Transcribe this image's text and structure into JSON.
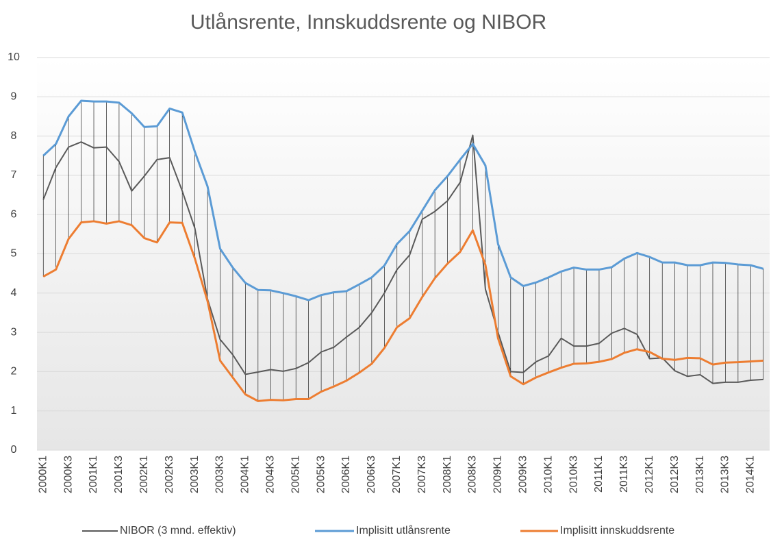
{
  "chart_data": {
    "type": "line",
    "title": "Utlånsrente, Innskuddsrente og NIBOR",
    "categories": [
      "2000K1",
      null,
      "2000K3",
      null,
      "2001K1",
      null,
      "2001K3",
      null,
      "2002K1",
      null,
      "2002K3",
      null,
      "2003K1",
      null,
      "2003K3",
      null,
      "2004K1",
      null,
      "2004K3",
      null,
      "2005K1",
      null,
      "2005K3",
      null,
      "2006K1",
      null,
      "2006K3",
      null,
      "2007K1",
      null,
      "2007K3",
      null,
      "2008K1",
      null,
      "2008K3",
      null,
      "2009K1",
      null,
      "2009K3",
      null,
      "2010K1",
      null,
      "2010K3",
      null,
      "2011K1",
      null,
      "2011K3",
      null,
      "2012K1",
      null,
      "2012K3",
      null,
      "2013K1",
      null,
      "2013K3",
      null,
      "2014K1",
      null
    ],
    "series": [
      {
        "name": "NIBOR (3 mnd. effektiv)",
        "color": "#595959",
        "values": [
          6.38,
          7.2,
          7.72,
          7.85,
          7.7,
          7.72,
          7.35,
          6.6,
          6.98,
          7.4,
          7.45,
          6.6,
          5.65,
          3.85,
          2.82,
          2.43,
          1.93,
          1.99,
          2.05,
          2.01,
          2.08,
          2.23,
          2.5,
          2.62,
          2.88,
          3.12,
          3.5,
          4.0,
          4.6,
          4.97,
          5.88,
          6.08,
          6.35,
          6.82,
          8.02,
          4.1,
          3.0,
          2.0,
          1.98,
          2.25,
          2.4,
          2.85,
          2.65,
          2.65,
          2.72,
          2.98,
          3.1,
          2.95,
          2.33,
          2.35,
          2.02,
          1.88,
          1.92,
          1.7,
          1.73,
          1.73,
          1.78,
          1.8
        ]
      },
      {
        "name": "Implisitt utlånsrente",
        "color": "#5b9bd5",
        "values": [
          7.5,
          7.8,
          8.5,
          8.9,
          8.88,
          8.88,
          8.85,
          8.58,
          8.23,
          8.25,
          8.7,
          8.6,
          7.6,
          6.72,
          5.13,
          4.65,
          4.26,
          4.08,
          4.07,
          4.0,
          3.92,
          3.82,
          3.95,
          4.02,
          4.05,
          4.22,
          4.4,
          4.7,
          5.25,
          5.58,
          6.1,
          6.62,
          6.98,
          7.4,
          7.8,
          7.25,
          5.25,
          4.4,
          4.18,
          4.27,
          4.4,
          4.55,
          4.65,
          4.6,
          4.6,
          4.66,
          4.88,
          5.02,
          4.92,
          4.78,
          4.78,
          4.71,
          4.71,
          4.78,
          4.77,
          4.73,
          4.71,
          4.62
        ]
      },
      {
        "name": "Implisitt innskuddsrente",
        "color": "#ed7d31",
        "values": [
          4.42,
          4.6,
          5.38,
          5.8,
          5.83,
          5.77,
          5.83,
          5.73,
          5.4,
          5.29,
          5.8,
          5.79,
          4.88,
          3.8,
          2.28,
          1.85,
          1.42,
          1.25,
          1.28,
          1.27,
          1.3,
          1.3,
          1.49,
          1.62,
          1.77,
          1.97,
          2.2,
          2.6,
          3.13,
          3.36,
          3.9,
          4.38,
          4.75,
          5.05,
          5.6,
          4.72,
          2.85,
          1.88,
          1.68,
          1.85,
          1.98,
          2.1,
          2.2,
          2.21,
          2.25,
          2.32,
          2.48,
          2.57,
          2.5,
          2.33,
          2.3,
          2.35,
          2.34,
          2.18,
          2.23,
          2.24,
          2.26,
          2.28
        ]
      }
    ],
    "ylim": [
      0,
      10
    ],
    "yticks": [
      0,
      1,
      2,
      3,
      4,
      5,
      6,
      7,
      8,
      9,
      10
    ],
    "grid": true,
    "legend": "bottom"
  }
}
